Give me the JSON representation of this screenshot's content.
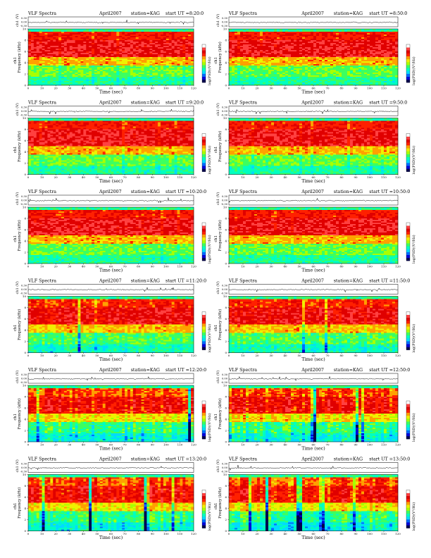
{
  "panels": [
    {
      "program": "VLF Spectra",
      "date": "April2007",
      "station": "station=KAG",
      "start": "start  UT  =8:20:0",
      "ch_label": "ch1 (V)",
      "freq_label": "ch1\nFrequency (kHz)",
      "time_label": "Time (sec)",
      "cbar_label": "log(PSD)(V²/Hz)"
    },
    {
      "program": "VLF Spectra",
      "date": "April2007",
      "station": "station=KAG",
      "start": "start  UT  =8:50:0",
      "ch_label": "ch1 (V)",
      "freq_label": "ch1\nFrequency (kHz)",
      "time_label": "Time (sec)",
      "cbar_label": "log(PSD)(V²/Hz)"
    },
    {
      "program": "VLF Spectra",
      "date": "April2007",
      "station": "station=KAG",
      "start": "start  UT  =9:20:0",
      "ch_label": "ch1 (V)",
      "freq_label": "ch1\nFrequency (kHz)",
      "time_label": "Time (sec)",
      "cbar_label": "log(PSD)(V²/Hz)"
    },
    {
      "program": "VLF Spectra",
      "date": "April2007",
      "station": "station=KAG",
      "start": "start  UT  =9:50:0",
      "ch_label": "ch1 (V)",
      "freq_label": "ch1\nFrequency (kHz)",
      "time_label": "Time (sec)",
      "cbar_label": "log(PSD)(V²/Hz)"
    },
    {
      "program": "VLF Spectra",
      "date": "April2007",
      "station": "station=KAG",
      "start": "start  UT  =10:20:0",
      "ch_label": "ch1 (V)",
      "freq_label": "ch1\nFrequency (kHz)",
      "time_label": "Time (sec)",
      "cbar_label": "log(PSD)(V²/Hz)"
    },
    {
      "program": "VLF Spectra",
      "date": "April2007",
      "station": "station=KAG",
      "start": "start  UT  =10:50:0",
      "ch_label": "ch1 (V)",
      "freq_label": "ch1\nFrequency (kHz)",
      "time_label": "Time (sec)",
      "cbar_label": "log(PSD)(V²/Hz)"
    },
    {
      "program": "VLF Spectra",
      "date": "April2007",
      "station": "station=KAG",
      "start": "start  UT  =11:20:0",
      "ch_label": "ch1 (V)",
      "freq_label": "ch1\nFrequency (kHz)",
      "time_label": "Time (sec)",
      "cbar_label": "log(PSD)(V²/Hz)"
    },
    {
      "program": "VLF Spectra",
      "date": "April2007",
      "station": "station=KAG",
      "start": "start  UT  =11:50:0",
      "ch_label": "ch1 (V)",
      "freq_label": "ch1\nFrequency (kHz)",
      "time_label": "Time (sec)",
      "cbar_label": "log(PSD)(V²/Hz)"
    },
    {
      "program": "VLF Spectra",
      "date": "April2007",
      "station": "station=KAG",
      "start": "start  UT  =12:20:0",
      "ch_label": "ch1 (V)",
      "freq_label": "ch1\nFrequency (kHz)",
      "time_label": "Time (sec)",
      "cbar_label": "log(PSD)(V²/Hz)"
    },
    {
      "program": "VLF Spectra",
      "date": "April2007",
      "station": "station=KAG",
      "start": "start  UT  =12:50:0",
      "ch_label": "ch1 (V)",
      "freq_label": "ch1\nFrequency (kHz)",
      "time_label": "Time (sec)",
      "cbar_label": "log(PSD)(V²/Hz)"
    },
    {
      "program": "VLF Spectra",
      "date": "April2007",
      "station": "station=KAG",
      "start": "start  UT  =13:20:0",
      "ch_label": "ch1 (V)",
      "freq_label": "ch1\nFrequency (kHz)",
      "time_label": "Time (sec)",
      "cbar_label": "log(PSD)(V²/Hz)"
    },
    {
      "program": "VLF Spectra",
      "date": "April2007",
      "station": "station=KAG",
      "start": "start  UT  =13:50:0",
      "ch_label": "ch1 (V)",
      "freq_label": "ch1\nFrequency (kHz)",
      "time_label": "Time (sec)",
      "cbar_label": "log(PSD)(V²/Hz)"
    }
  ],
  "colors": {
    "colormap": [
      "#00004f",
      "#0000d8",
      "#006cff",
      "#00dcff",
      "#00ffc0",
      "#3cff60",
      "#a8ff00",
      "#f0f000",
      "#ffa000",
      "#ff2000",
      "#e00000",
      "#ff4040",
      "#ffffff"
    ],
    "trace": "#000000",
    "axis": "#000000"
  },
  "chart_data": {
    "type": "heatmap",
    "description_source": "12 spectrogram panels with waveform trace above each",
    "x_axis": {
      "label": "Time (sec)",
      "range": [
        0,
        120
      ],
      "ticks": [
        0,
        10,
        20,
        30,
        40,
        50,
        60,
        70,
        80,
        90,
        100,
        110,
        120
      ]
    },
    "y_axis": {
      "label": "Frequency (kHz)",
      "range": [
        0,
        10
      ],
      "ticks": [
        0,
        2,
        4,
        6,
        8,
        10
      ]
    },
    "trace_axis": {
      "label": "ch1 (V)",
      "range": [
        -0.3,
        0.3
      ],
      "ticks": [
        "0.30",
        "0.00",
        "-0.30"
      ]
    },
    "colorbar": {
      "label": "log(PSD)(V²/Hz)"
    },
    "start_times": [
      "8:20:0",
      "8:50:0",
      "9:20:0",
      "9:50:0",
      "10:20:0",
      "10:50:0",
      "11:20:0",
      "11:50:0",
      "12:20:0",
      "12:50:0",
      "13:20:0",
      "13:50:0"
    ],
    "intensity_profile": [
      {
        "freq_band_kHz": [
          9.4,
          10
        ],
        "level": 4.5
      },
      {
        "freq_band_kHz": [
          8.0,
          9.4
        ],
        "level": 9.5
      },
      {
        "freq_band_kHz": [
          5.0,
          8.0
        ],
        "level": 10.5
      },
      {
        "freq_band_kHz": [
          3.5,
          5.0
        ],
        "level": 8.0
      },
      {
        "freq_band_kHz": [
          1.5,
          3.5
        ],
        "level": 5.5
      },
      {
        "freq_band_kHz": [
          0,
          1.5
        ],
        "level": 4.5
      }
    ]
  }
}
